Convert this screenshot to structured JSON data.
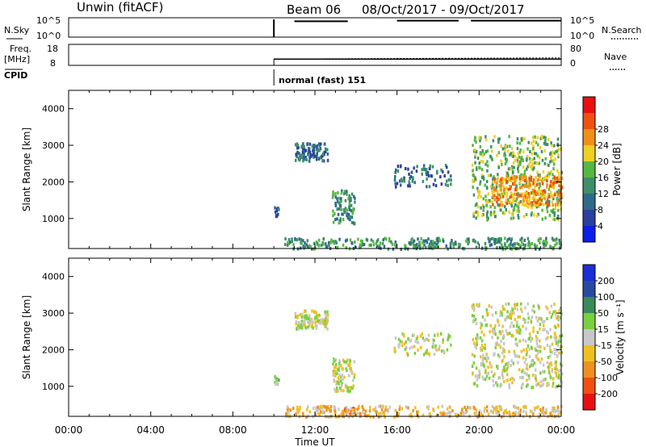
{
  "header": {
    "station": "Unwin (fitACF)",
    "beam": "Beam 06",
    "date_range": "08/Oct/2017 - 09/Oct/2017"
  },
  "labels": {
    "nsky": "N.Sky",
    "freq": "Freq.",
    "mhz": "[MHz]",
    "cpid": "CPID",
    "nsearch": "N.Search",
    "nave": "Nave",
    "cpid_value": "normal (fast) 151"
  },
  "chart_data": [
    {
      "type": "line",
      "panel": "noise",
      "left_ticks": [
        "10^5",
        "10^0"
      ],
      "right_ticks": [
        "10^5",
        "10^0"
      ],
      "segments": [
        {
          "start_h": 10.0,
          "end_h": 10.1,
          "level": 0.0
        },
        {
          "start_h": 11.0,
          "end_h": 13.6,
          "level": 0.82
        },
        {
          "start_h": 16.0,
          "end_h": 19.0,
          "level": 0.85
        },
        {
          "start_h": 19.6,
          "end_h": 24.0,
          "level": 0.85
        }
      ]
    },
    {
      "type": "line",
      "panel": "frequency",
      "left_ticks": [
        "18",
        "8"
      ],
      "right_ticks": [
        "80",
        "0"
      ],
      "start_h": 10.0,
      "end_h": 24.0,
      "freq_mhz": 11
    },
    {
      "type": "heatmap",
      "panel": "power",
      "ylabel": "Slant Range [km]",
      "ylim": [
        180,
        4500
      ],
      "yticks": [
        "1000",
        "2000",
        "3000",
        "4000"
      ],
      "colorbar_label": "Power [dB]",
      "colorbar_ticks": [
        "4",
        "8",
        "12",
        "16",
        "20",
        "24",
        "28"
      ],
      "colors": [
        "#0a1fe8",
        "#2a3f9e",
        "#2f6a8a",
        "#3f8f6a",
        "#56b840",
        "#f0d020",
        "#f09018",
        "#f05010",
        "#e81010"
      ],
      "bands": [
        {
          "start_h": 10.0,
          "end_h": 10.2,
          "range_lo": 1100,
          "range_hi": 1350,
          "count": 10,
          "level": 2
        },
        {
          "start_h": 11.0,
          "end_h": 12.6,
          "range_lo": 2600,
          "range_hi": 3100,
          "count": 110,
          "level": 2
        },
        {
          "start_h": 12.8,
          "end_h": 13.9,
          "range_lo": 900,
          "range_hi": 1800,
          "count": 90,
          "level": 3
        },
        {
          "start_h": 15.8,
          "end_h": 18.6,
          "range_lo": 1900,
          "range_hi": 2500,
          "count": 80,
          "level": 2
        },
        {
          "start_h": 19.6,
          "end_h": 24.0,
          "range_lo": 1000,
          "range_hi": 3300,
          "count": 500,
          "level": 4
        },
        {
          "start_h": 20.5,
          "end_h": 24.0,
          "range_lo": 1400,
          "range_hi": 2200,
          "count": 260,
          "level": 6
        },
        {
          "start_h": 10.5,
          "end_h": 24.0,
          "range_lo": 200,
          "range_hi": 500,
          "count": 340,
          "level": 3
        }
      ]
    },
    {
      "type": "heatmap",
      "panel": "velocity",
      "ylabel": "Slant Range [km]",
      "ylim": [
        180,
        4500
      ],
      "yticks": [
        "1000",
        "2000",
        "3000",
        "4000"
      ],
      "colorbar_label": "Velocity [m s⁻¹]",
      "colorbar_ticks": [
        "200",
        "100",
        "50",
        "15",
        "-15",
        "-50",
        "-100",
        "-200"
      ],
      "colors": [
        "#1a2fd8",
        "#2a4aa0",
        "#3a8a5a",
        "#7ad040",
        "#c8c8c8",
        "#f0c020",
        "#f09020",
        "#f05010",
        "#e81010"
      ],
      "bands": [
        {
          "start_h": 10.0,
          "end_h": 10.2,
          "range_lo": 1100,
          "range_hi": 1350,
          "count": 10,
          "level": 3
        },
        {
          "start_h": 11.0,
          "end_h": 12.6,
          "range_lo": 2600,
          "range_hi": 3100,
          "count": 110,
          "level": 4
        },
        {
          "start_h": 12.8,
          "end_h": 13.9,
          "range_lo": 900,
          "range_hi": 1800,
          "count": 90,
          "level": 4
        },
        {
          "start_h": 15.8,
          "end_h": 18.6,
          "range_lo": 1900,
          "range_hi": 2500,
          "count": 80,
          "level": 4
        },
        {
          "start_h": 19.6,
          "end_h": 24.0,
          "range_lo": 1000,
          "range_hi": 3300,
          "count": 500,
          "level": 4
        },
        {
          "start_h": 13.3,
          "end_h": 13.9,
          "range_lo": 250,
          "range_hi": 450,
          "count": 20,
          "level": 7
        },
        {
          "start_h": 10.5,
          "end_h": 24.0,
          "range_lo": 200,
          "range_hi": 500,
          "count": 340,
          "level": 5
        }
      ],
      "xticks": [
        "00:00",
        "04:00",
        "08:00",
        "12:00",
        "16:00",
        "20:00",
        "00:00"
      ],
      "xlabel": "Time UT",
      "xlim_h": [
        0,
        24
      ]
    }
  ]
}
